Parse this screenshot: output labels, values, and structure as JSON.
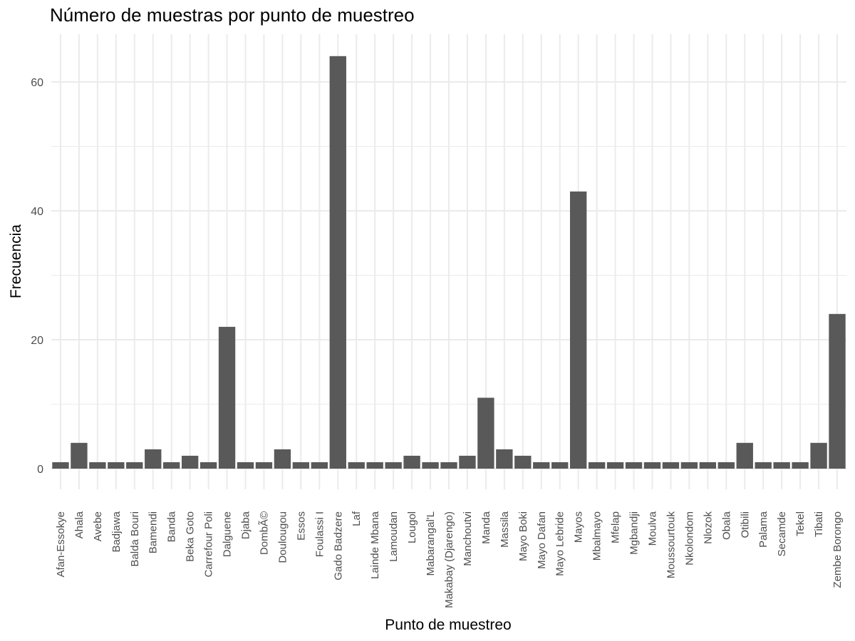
{
  "chart_data": {
    "type": "bar",
    "title": "Número de muestras por punto de muestreo",
    "xlabel": "Punto de muestreo",
    "ylabel": "Frecuencia",
    "ylim": [
      0,
      67
    ],
    "yticks": [
      0,
      20,
      40,
      60
    ],
    "grid": true,
    "bar_color": "#595959",
    "grid_color": "#ebebeb",
    "categories": [
      "Afan-Essokye",
      "Ahala",
      "Avebe",
      "Badjawa",
      "Balda Bouri",
      "Bamendi",
      "Banda",
      "Beka Goto",
      "Carrefour Poli",
      "Dalguene",
      "Djaba",
      "DombÃ©",
      "Doulougou",
      "Essos",
      "Foulassi I",
      "Gado Badzere",
      "Laf",
      "Lainde Mbana",
      "Lamoudan",
      "Lougol",
      "Mabarangal'L",
      "Makabay (Djarengo)",
      "Manchoutvi",
      "Manda",
      "Massila",
      "Mayo Boki",
      "Mayo Dafan",
      "Mayo Lebride",
      "Mayos",
      "Mbalmayo",
      "Mfelap",
      "Mgbandji",
      "Moulva",
      "Moussourtouk",
      "Nkolondom",
      "Nlozok",
      "Obala",
      "Otibili",
      "Palama",
      "Secamde",
      "Tekel",
      "Tibati",
      "Zembe Borongo"
    ],
    "values": [
      1,
      4,
      1,
      1,
      1,
      3,
      1,
      2,
      1,
      22,
      1,
      1,
      3,
      1,
      1,
      64,
      1,
      1,
      1,
      2,
      1,
      1,
      2,
      11,
      3,
      2,
      1,
      1,
      43,
      1,
      1,
      1,
      1,
      1,
      1,
      1,
      1,
      4,
      1,
      1,
      1,
      4,
      24
    ]
  }
}
